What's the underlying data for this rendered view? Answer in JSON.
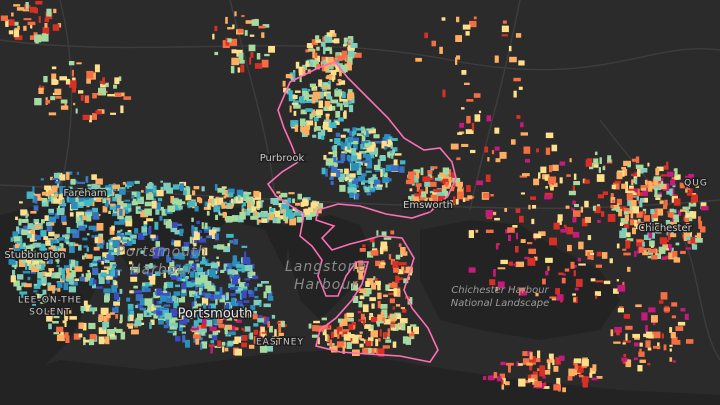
{
  "places": [
    {
      "lines": [
        "Purbrook"
      ]
    },
    {
      "lines": [
        "Fareham"
      ]
    },
    {
      "lines": [
        "Stubbington"
      ]
    },
    {
      "lines": [
        "LEE-ON-THE",
        "SOLENT"
      ]
    },
    {
      "lines": [
        "Portsmouth",
        "Harbour"
      ]
    },
    {
      "lines": [
        "Portsmouth"
      ]
    },
    {
      "lines": [
        "EASTNEY"
      ]
    },
    {
      "lines": [
        "Langstone",
        "Harbour"
      ]
    },
    {
      "lines": [
        "Emsworth"
      ]
    },
    {
      "lines": [
        "Chichester Harbour",
        "National Landscape"
      ]
    },
    {
      "lines": [
        "Chichester"
      ]
    },
    {
      "lines": [
        "QUG"
      ]
    }
  ]
}
